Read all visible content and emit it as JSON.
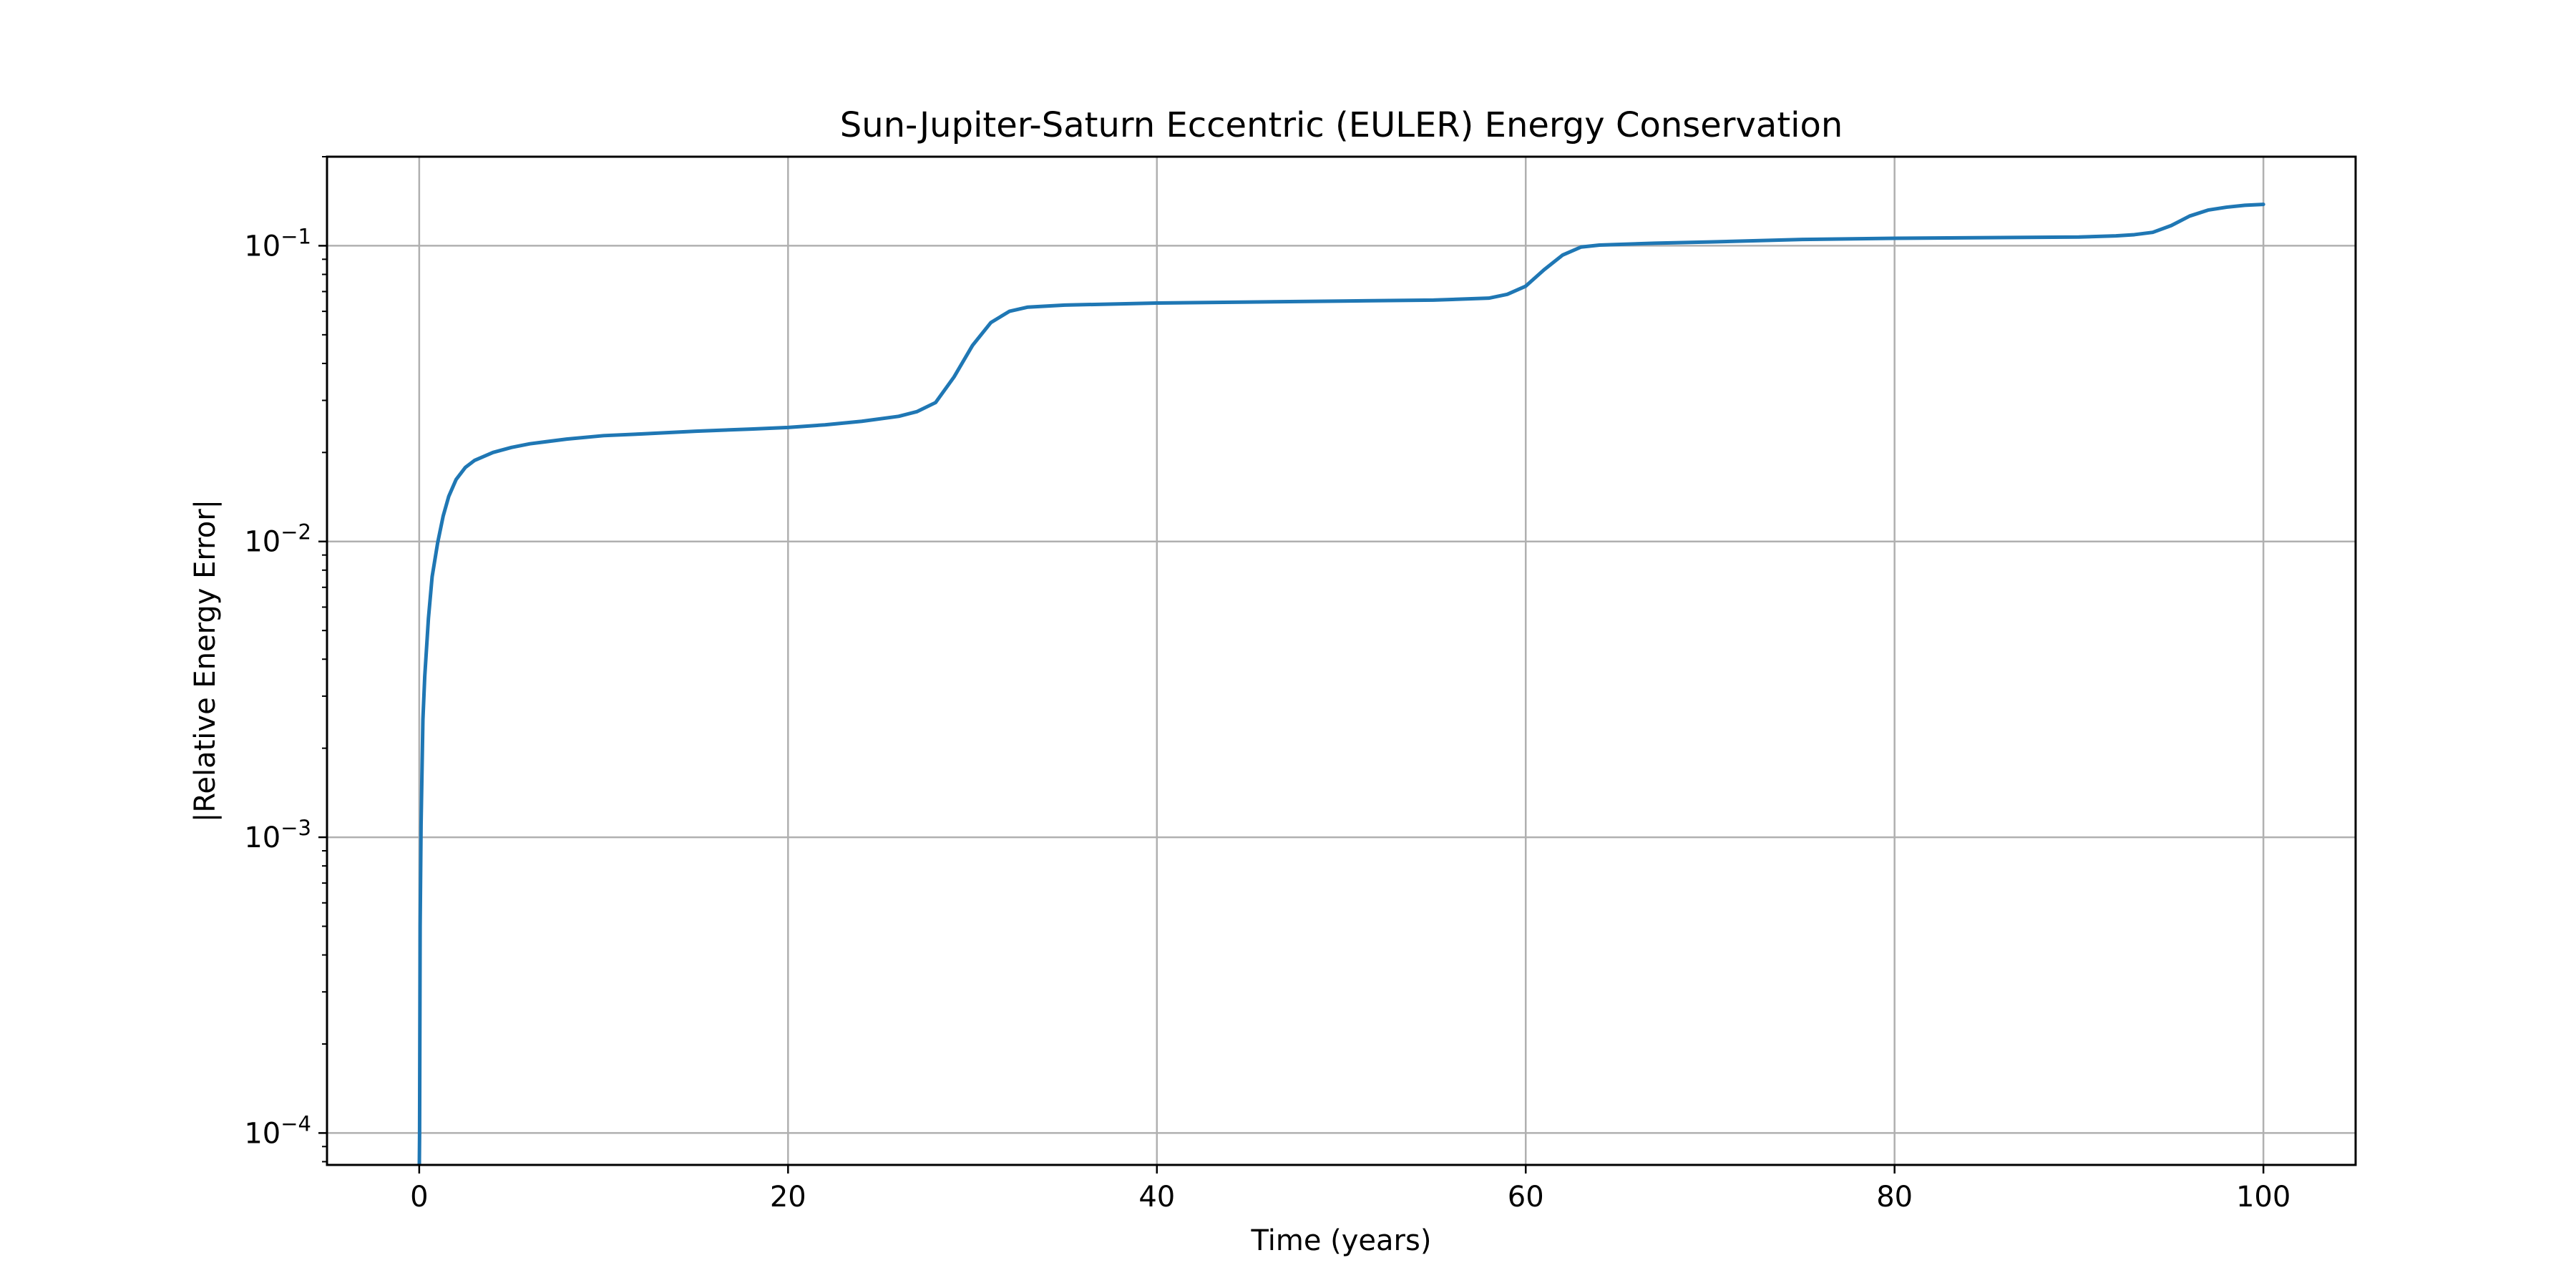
{
  "chart_data": {
    "type": "line",
    "title": "Sun-Jupiter-Saturn Eccentric (EULER) Energy Conservation",
    "xlabel": "Time (years)",
    "ylabel": "|Relative Energy Error|",
    "xlim": [
      -5,
      105
    ],
    "ylim": [
      7.8e-05,
      0.2
    ],
    "yscale": "log",
    "grid": true,
    "legend": "none",
    "x_ticks": [
      0,
      20,
      40,
      60,
      80,
      100
    ],
    "x_tick_labels": [
      "0",
      "20",
      "40",
      "60",
      "80",
      "100"
    ],
    "y_ticks": [
      0.0001,
      0.001,
      0.01,
      0.1
    ],
    "y_tick_labels": [
      {
        "base": "10",
        "exp": "−4"
      },
      {
        "base": "10",
        "exp": "−3"
      },
      {
        "base": "10",
        "exp": "−2"
      },
      {
        "base": "10",
        "exp": "−1"
      }
    ],
    "colors": {
      "line": "#1f77b4",
      "grid": "#b0b0b0",
      "axes": "#000000"
    },
    "series": [
      {
        "x": [
          0,
          0.02,
          0.05,
          0.1,
          0.2,
          0.3,
          0.5,
          0.7,
          1.0,
          1.3,
          1.6,
          2.0,
          2.5,
          3.0,
          4,
          5,
          6,
          8,
          10,
          12,
          15,
          18,
          20,
          22,
          24,
          26,
          27,
          28,
          29,
          30,
          31,
          32,
          33,
          35,
          40,
          45,
          50,
          55,
          58,
          59,
          60,
          61,
          62,
          63,
          64,
          65,
          67,
          70,
          75,
          80,
          85,
          90,
          92,
          93,
          94,
          95,
          96,
          97,
          98,
          99,
          100
        ],
        "y": [
          7e-05,
          0.0001,
          0.0005,
          0.0011,
          0.0025,
          0.0035,
          0.0055,
          0.0076,
          0.0099,
          0.0122,
          0.0142,
          0.0162,
          0.0178,
          0.0188,
          0.02,
          0.0208,
          0.0214,
          0.0222,
          0.0228,
          0.0231,
          0.0236,
          0.024,
          0.0243,
          0.0248,
          0.0255,
          0.0265,
          0.0275,
          0.0295,
          0.036,
          0.046,
          0.055,
          0.06,
          0.062,
          0.063,
          0.064,
          0.0645,
          0.065,
          0.0655,
          0.0665,
          0.0685,
          0.073,
          0.083,
          0.093,
          0.099,
          0.1005,
          0.101,
          0.102,
          0.103,
          0.105,
          0.106,
          0.1065,
          0.107,
          0.108,
          0.109,
          0.111,
          0.117,
          0.126,
          0.132,
          0.135,
          0.137,
          0.138
        ]
      }
    ]
  }
}
